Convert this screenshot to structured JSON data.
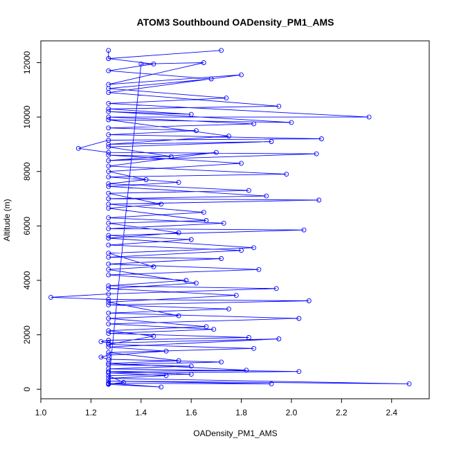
{
  "chart_data": {
    "type": "line",
    "title": "ATOM3 Southbound OADensity_PM1_AMS",
    "xlabel": "OADensity_PM1_AMS",
    "ylabel": "Altitude (m)",
    "xlim": [
      1.0,
      2.55
    ],
    "ylim": [
      0,
      12800
    ],
    "xticks": [
      "1.0",
      "1.2",
      "1.4",
      "1.6",
      "1.8",
      "2.0",
      "2.2",
      "2.4"
    ],
    "yticks": [
      "0",
      "2000",
      "4000",
      "6000",
      "8000",
      "10000",
      "12000"
    ],
    "grid": false,
    "series": [
      {
        "color": "#0000ff",
        "marker": "open-circle",
        "points": [
          [
            1.27,
            12450
          ],
          [
            1.27,
            12150
          ],
          [
            1.72,
            12450
          ],
          [
            1.27,
            12150
          ],
          [
            1.45,
            11950
          ],
          [
            1.27,
            11700
          ],
          [
            1.68,
            11400
          ],
          [
            1.27,
            11050
          ],
          [
            1.74,
            10700
          ],
          [
            1.27,
            10500
          ],
          [
            2.31,
            10000
          ],
          [
            1.27,
            10000
          ],
          [
            1.85,
            9750
          ],
          [
            1.27,
            9600
          ],
          [
            1.62,
            9500
          ],
          [
            1.27,
            9350
          ],
          [
            2.12,
            9200
          ],
          [
            1.27,
            9150
          ],
          [
            1.15,
            8850
          ],
          [
            1.27,
            8700
          ],
          [
            2.1,
            8650
          ],
          [
            1.27,
            8400
          ],
          [
            1.7,
            8700
          ],
          [
            1.27,
            8200
          ],
          [
            1.98,
            7900
          ],
          [
            1.27,
            7800
          ],
          [
            1.55,
            7600
          ],
          [
            1.27,
            7450
          ],
          [
            1.9,
            7100
          ],
          [
            1.27,
            7000
          ],
          [
            2.11,
            6950
          ],
          [
            1.27,
            6800
          ],
          [
            1.65,
            6500
          ],
          [
            1.27,
            6300
          ],
          [
            1.73,
            6100
          ],
          [
            1.27,
            5900
          ],
          [
            2.05,
            5850
          ],
          [
            1.27,
            5650
          ],
          [
            1.6,
            5500
          ],
          [
            1.27,
            5300
          ],
          [
            1.8,
            5100
          ],
          [
            1.27,
            4850
          ],
          [
            1.72,
            4800
          ],
          [
            1.27,
            4600
          ],
          [
            1.87,
            4400
          ],
          [
            1.27,
            4200
          ],
          [
            1.58,
            4000
          ],
          [
            1.27,
            3800
          ],
          [
            1.94,
            3700
          ],
          [
            1.27,
            3500
          ],
          [
            1.04,
            3380
          ],
          [
            1.27,
            3300
          ],
          [
            2.07,
            3250
          ],
          [
            1.27,
            3100
          ],
          [
            1.75,
            2950
          ],
          [
            1.27,
            2800
          ],
          [
            2.03,
            2600
          ],
          [
            1.27,
            2400
          ],
          [
            1.69,
            2200
          ],
          [
            1.27,
            2050
          ],
          [
            1.83,
            1900
          ],
          [
            1.27,
            1800
          ],
          [
            1.24,
            1750
          ],
          [
            1.27,
            1700
          ],
          [
            1.95,
            1850
          ],
          [
            1.27,
            1550
          ],
          [
            1.5,
            1400
          ],
          [
            1.27,
            1250
          ],
          [
            1.24,
            1180
          ],
          [
            1.27,
            1100
          ],
          [
            1.72,
            1000
          ],
          [
            1.27,
            900
          ],
          [
            1.6,
            850
          ],
          [
            1.27,
            750
          ],
          [
            2.03,
            650
          ],
          [
            1.27,
            600
          ],
          [
            1.5,
            500
          ],
          [
            1.27,
            400
          ],
          [
            2.47,
            200
          ],
          [
            1.27,
            300
          ],
          [
            1.92,
            200
          ],
          [
            1.27,
            220
          ],
          [
            1.48,
            80
          ],
          [
            1.27,
            180
          ],
          [
            1.4,
            11950
          ],
          [
            1.65,
            12000
          ],
          [
            1.27,
            11200
          ],
          [
            1.8,
            11550
          ],
          [
            1.27,
            10900
          ],
          [
            1.95,
            10400
          ],
          [
            1.27,
            10300
          ],
          [
            1.6,
            10100
          ],
          [
            1.27,
            10200
          ],
          [
            2.0,
            9800
          ],
          [
            1.27,
            9900
          ],
          [
            1.75,
            9300
          ],
          [
            1.27,
            9000
          ],
          [
            1.92,
            9100
          ],
          [
            1.27,
            8900
          ],
          [
            1.52,
            8550
          ],
          [
            1.27,
            8600
          ],
          [
            1.8,
            8300
          ],
          [
            1.27,
            8000
          ],
          [
            1.42,
            7700
          ],
          [
            1.27,
            7550
          ],
          [
            1.83,
            7300
          ],
          [
            1.27,
            7200
          ],
          [
            1.48,
            6800
          ],
          [
            1.27,
            6650
          ],
          [
            1.66,
            6200
          ],
          [
            1.27,
            6100
          ],
          [
            1.55,
            5750
          ],
          [
            1.27,
            5550
          ],
          [
            1.85,
            5200
          ],
          [
            1.27,
            5000
          ],
          [
            1.45,
            4500
          ],
          [
            1.27,
            4400
          ],
          [
            1.62,
            3900
          ],
          [
            1.27,
            3700
          ],
          [
            1.78,
            3450
          ],
          [
            1.27,
            3200
          ],
          [
            1.55,
            2700
          ],
          [
            1.27,
            2600
          ],
          [
            1.66,
            2300
          ],
          [
            1.27,
            2150
          ],
          [
            1.45,
            1950
          ],
          [
            1.27,
            1650
          ],
          [
            1.85,
            1500
          ],
          [
            1.27,
            1350
          ],
          [
            1.55,
            1050
          ],
          [
            1.27,
            950
          ],
          [
            1.82,
            700
          ],
          [
            1.27,
            650
          ],
          [
            1.6,
            550
          ],
          [
            1.27,
            500
          ],
          [
            1.33,
            250
          ],
          [
            1.27,
            200
          ]
        ]
      }
    ]
  }
}
